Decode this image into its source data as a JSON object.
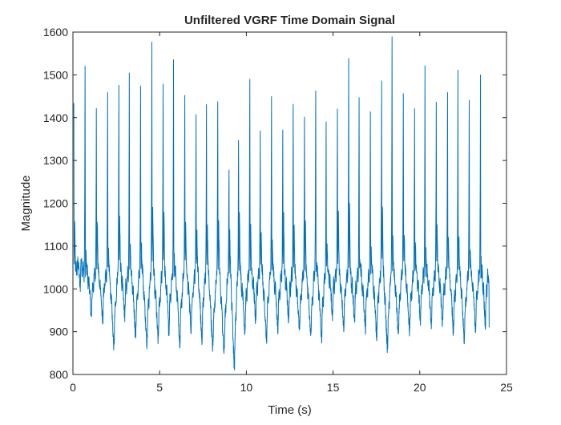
{
  "chart_data": {
    "type": "line",
    "title": "Unfiltered VGRF Time Domain Signal",
    "xlabel": "Time (s)",
    "ylabel": "Magnitude",
    "xlim": [
      0,
      25
    ],
    "ylim": [
      800,
      1600
    ],
    "xticks": [
      "0",
      "5",
      "10",
      "15",
      "20",
      "25"
    ],
    "yticks": [
      "800",
      "900",
      "1000",
      "1100",
      "1200",
      "1300",
      "1400",
      "1500",
      "1600"
    ],
    "grid": false,
    "line_color": "#0072bd",
    "x_end": 24.0,
    "spike_times": [
      0.05,
      0.7,
      1.35,
      2.0,
      2.65,
      3.25,
      3.9,
      4.55,
      5.2,
      5.8,
      6.45,
      7.1,
      7.7,
      8.35,
      9.0,
      9.55,
      10.2,
      10.8,
      11.45,
      12.1,
      12.7,
      13.35,
      14.0,
      14.6,
      15.25,
      15.9,
      16.5,
      17.15,
      17.8,
      18.4,
      19.05,
      19.7,
      20.3,
      20.95,
      21.6,
      22.2,
      22.85,
      23.5
    ],
    "spike_peaks": [
      1440,
      1520,
      1415,
      1470,
      1480,
      1500,
      1475,
      1570,
      1490,
      1535,
      1440,
      1395,
      1430,
      1450,
      1290,
      1350,
      1495,
      1370,
      1460,
      1385,
      1445,
      1415,
      1475,
      1390,
      1415,
      1530,
      1455,
      1400,
      1480,
      1575,
      1450,
      1425,
      1510,
      1425,
      1470,
      1500,
      1450,
      1490
    ],
    "trough_mins": [
      1000,
      930,
      920,
      865,
      935,
      890,
      870,
      880,
      900,
      875,
      905,
      880,
      860,
      850,
      820,
      900,
      925,
      880,
      905,
      920,
      900,
      890,
      880,
      935,
      910,
      920,
      905,
      890,
      860,
      890,
      900,
      920,
      915,
      915,
      900,
      880,
      905,
      910
    ],
    "final_value": 910
  }
}
